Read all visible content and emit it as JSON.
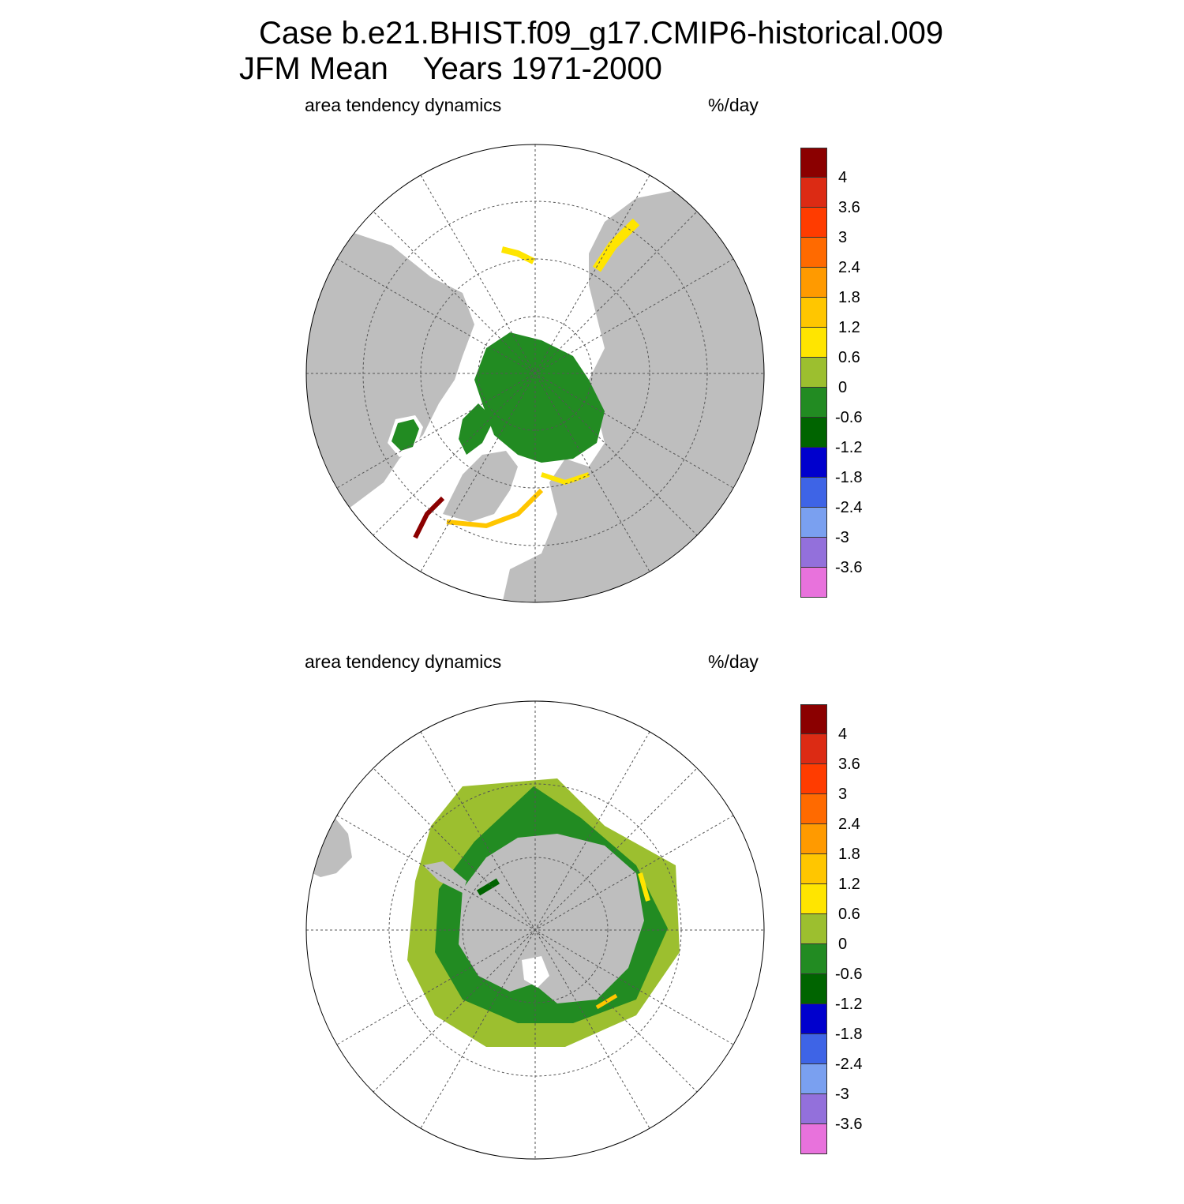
{
  "title": {
    "line1": "Case b.e21.BHIST.f09_g17.CMIP6-historical.009",
    "line2": "JFM Mean    Years 1971-2000"
  },
  "panels": [
    {
      "id": "north",
      "left_label": "area tendency dynamics",
      "right_label": "%/day"
    },
    {
      "id": "south",
      "left_label": "area tendency dynamics",
      "right_label": "%/day"
    }
  ],
  "colorbar": {
    "tick_labels": [
      "4",
      "3.6",
      "3",
      "2.4",
      "1.8",
      "1.2",
      "0.6",
      "0",
      "-0.6",
      "-1.2",
      "-1.8",
      "-2.4",
      "-3",
      "-3.6"
    ],
    "colors": [
      "#8b0000",
      "#dc2b14",
      "#ff3c00",
      "#ff6a00",
      "#ff9a00",
      "#ffc600",
      "#ffe500",
      "#9cbf2f",
      "#228b22",
      "#006400",
      "#0000cd",
      "#3e64e6",
      "#7aa0f0",
      "#9370db",
      "#e872dc"
    ]
  },
  "map_colors": {
    "land": "#bebebe",
    "ocean": "#ffffff",
    "grid": "#555555"
  }
}
